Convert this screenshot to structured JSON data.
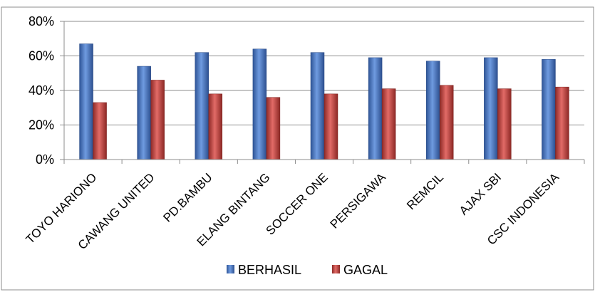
{
  "chart_data": {
    "type": "bar",
    "categories": [
      "TOYO HARIONO",
      "CAWANG UNITED",
      "PD.BAMBU",
      "ELANG BINTANG",
      "SOCCER ONE",
      "PERSIGAWA",
      "REMCIL",
      "AJAX SBI",
      "CSC INDONESIA"
    ],
    "series": [
      {
        "name": "BERHASIL",
        "values": [
          67,
          54,
          62,
          64,
          62,
          59,
          57,
          59,
          58
        ],
        "color": "#4472C4"
      },
      {
        "name": "GAGAL",
        "values": [
          33,
          46,
          38,
          36,
          38,
          41,
          43,
          41,
          42
        ],
        "color": "#C0504D"
      }
    ],
    "ylim": [
      0,
      80
    ],
    "yticks": [
      "0%",
      "20%",
      "40%",
      "60%",
      "80%"
    ],
    "ytick_values": [
      0,
      20,
      40,
      60,
      80
    ],
    "grid": true,
    "legend_position": "bottom",
    "title": "",
    "xlabel": "",
    "ylabel": ""
  }
}
